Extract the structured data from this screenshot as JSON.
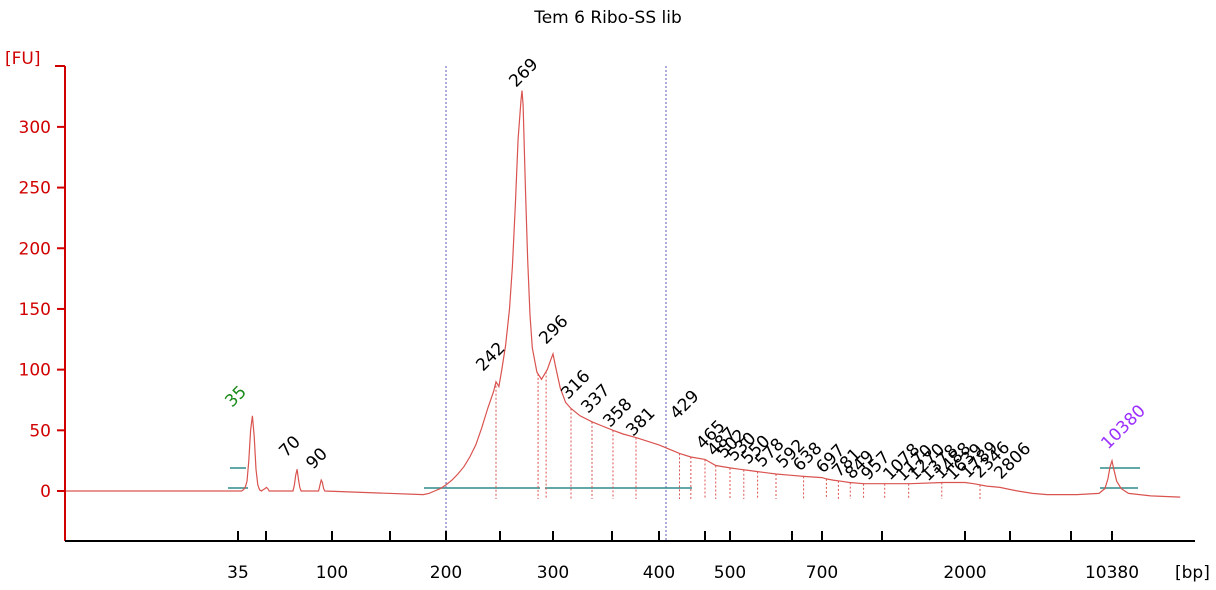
{
  "chart_data": {
    "type": "line",
    "title": "Tem 6 Ribo-SS lib",
    "ylabel": "[FU]",
    "xlabel": "[bp]",
    "ylim": [
      -40,
      345
    ],
    "y_ticks": [
      0,
      50,
      100,
      150,
      200,
      250,
      300
    ],
    "x_tick_labels": [
      "35",
      "100",
      "200",
      "300",
      "400",
      "500",
      "700",
      "2000",
      "10380"
    ],
    "colors": {
      "trace": "#d9534f",
      "axis": "#d10000",
      "marker": "#2e8b8b",
      "lower_marker": "#1a8a1a",
      "upper_marker": "#9b30ff"
    },
    "series": [
      {
        "values": [
          [
            35,
            0
          ],
          [
            36,
            0
          ],
          [
            37,
            0
          ],
          [
            38,
            1
          ],
          [
            39,
            3
          ],
          [
            40,
            8
          ],
          [
            41,
            25
          ],
          [
            42,
            50
          ],
          [
            43,
            62
          ],
          [
            44,
            45
          ],
          [
            45,
            18
          ],
          [
            46,
            5
          ],
          [
            47,
            1
          ],
          [
            48,
            0
          ],
          [
            49,
            1
          ],
          [
            50,
            2
          ],
          [
            51,
            3
          ],
          [
            52,
            2
          ],
          [
            53,
            0
          ],
          [
            70,
            0
          ],
          [
            71,
            5
          ],
          [
            72,
            13
          ],
          [
            73,
            18
          ],
          [
            74,
            10
          ],
          [
            75,
            3
          ],
          [
            76,
            0
          ],
          [
            89,
            0
          ],
          [
            90,
            5
          ],
          [
            91,
            9
          ],
          [
            92,
            7
          ],
          [
            93,
            2
          ],
          [
            94,
            0
          ],
          [
            180,
            -3
          ],
          [
            185,
            -2
          ],
          [
            190,
            0
          ],
          [
            195,
            2
          ],
          [
            200,
            5
          ],
          [
            205,
            9
          ],
          [
            210,
            14
          ],
          [
            215,
            20
          ],
          [
            220,
            28
          ],
          [
            225,
            38
          ],
          [
            230,
            52
          ],
          [
            235,
            68
          ],
          [
            240,
            82
          ],
          [
            242,
            90
          ],
          [
            245,
            86
          ],
          [
            248,
            100
          ],
          [
            252,
            120
          ],
          [
            256,
            150
          ],
          [
            259,
            185
          ],
          [
            262,
            235
          ],
          [
            265,
            290
          ],
          [
            268,
            322
          ],
          [
            269,
            330
          ],
          [
            270,
            318
          ],
          [
            272,
            250
          ],
          [
            274,
            190
          ],
          [
            276,
            145
          ],
          [
            278,
            118
          ],
          [
            282,
            98
          ],
          [
            286,
            92
          ],
          [
            291,
            100
          ],
          [
            294,
            108
          ],
          [
            296,
            113
          ],
          [
            299,
            102
          ],
          [
            304,
            85
          ],
          [
            310,
            73
          ],
          [
            316,
            68
          ],
          [
            325,
            62
          ],
          [
            337,
            57
          ],
          [
            346,
            54
          ],
          [
            358,
            50
          ],
          [
            368,
            47
          ],
          [
            381,
            44
          ],
          [
            400,
            38
          ],
          [
            429,
            31
          ],
          [
            445,
            28
          ],
          [
            465,
            26
          ],
          [
            480,
            21
          ],
          [
            500,
            19
          ],
          [
            520,
            18
          ],
          [
            540,
            17
          ],
          [
            560,
            16
          ],
          [
            580,
            15
          ],
          [
            600,
            14
          ],
          [
            630,
            13
          ],
          [
            660,
            12
          ],
          [
            700,
            11
          ],
          [
            740,
            10
          ],
          [
            800,
            9
          ],
          [
            880,
            8
          ],
          [
            950,
            7
          ],
          [
            1080,
            6
          ],
          [
            1200,
            6
          ],
          [
            1500,
            6
          ],
          [
            1800,
            7
          ],
          [
            2000,
            7
          ],
          [
            2200,
            6
          ],
          [
            2500,
            4
          ],
          [
            2806,
            3
          ],
          [
            3200,
            2
          ],
          [
            4000,
            0
          ],
          [
            5000,
            -2
          ],
          [
            6000,
            -3
          ],
          [
            8000,
            -3
          ],
          [
            9500,
            -2
          ],
          [
            9900,
            2
          ],
          [
            10100,
            10
          ],
          [
            10250,
            20
          ],
          [
            10380,
            25
          ],
          [
            10500,
            18
          ],
          [
            10700,
            8
          ],
          [
            11000,
            2
          ],
          [
            11500,
            -2
          ],
          [
            13000,
            -4
          ],
          [
            15000,
            -5
          ]
        ]
      }
    ],
    "peak_labels": [
      "35",
      "70",
      "90",
      "242",
      "269",
      "296",
      "316",
      "337",
      "358",
      "381",
      "429",
      "465",
      "487",
      "502",
      "530",
      "550",
      "578",
      "592",
      "638",
      "697",
      "781",
      "849",
      "957",
      "1078",
      "1170",
      "1270",
      "1378",
      "1488",
      "1639",
      "1789",
      "2346",
      "2806",
      "10380"
    ]
  }
}
